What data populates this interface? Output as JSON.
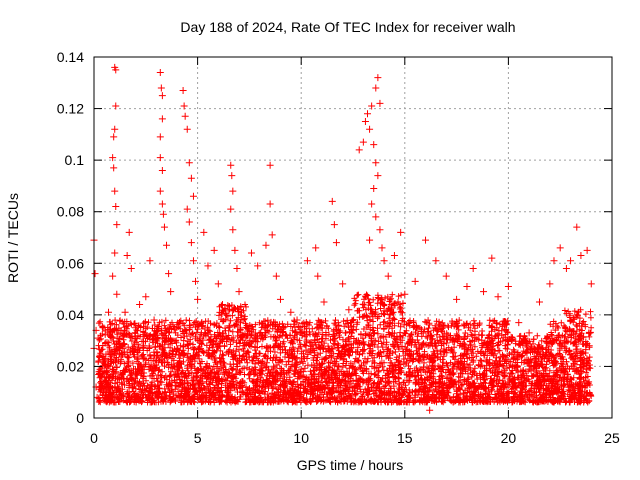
{
  "chart_data": {
    "type": "scatter",
    "title": "Day 188 of 2024, Rate Of TEC Index for receiver walh",
    "xlabel": "GPS time / hours",
    "ylabel": "ROTI / TECUs",
    "xlim": [
      0,
      25
    ],
    "ylim": [
      0,
      0.14
    ],
    "x_ticks": [
      0,
      5,
      10,
      15,
      20,
      25
    ],
    "x_tick_labels": [
      "0",
      "5",
      "10",
      "15",
      "20",
      "25"
    ],
    "y_ticks": [
      0,
      0.02,
      0.04,
      0.06,
      0.08,
      0.1,
      0.12,
      0.14
    ],
    "y_tick_labels": [
      "0",
      "0.02",
      "0.04",
      "0.06",
      "0.08",
      "0.1",
      "0.12",
      "0.14"
    ],
    "grid": true,
    "legend": "none",
    "marker": "plus",
    "color": "#ff0000",
    "series": [
      {
        "values": [
          {
            "x": 0.0,
            "y": 0.027
          },
          {
            "x": 0.0,
            "y": 0.069
          },
          {
            "x": 0.05,
            "y": 0.056
          },
          {
            "x": 0.1,
            "y": 0.034
          },
          {
            "x": 0.1,
            "y": 0.012
          },
          {
            "x": 0.15,
            "y": 0.008
          },
          {
            "x": 0.2,
            "y": 0.031
          },
          {
            "x": 0.5,
            "y": 0.022
          },
          {
            "x": 0.6,
            "y": 0.016
          },
          {
            "x": 0.7,
            "y": 0.041
          },
          {
            "x": 0.8,
            "y": 0.012
          },
          {
            "x": 0.9,
            "y": 0.055
          },
          {
            "x": 1.0,
            "y": 0.136
          },
          {
            "x": 1.05,
            "y": 0.135
          },
          {
            "x": 1.05,
            "y": 0.121
          },
          {
            "x": 1.0,
            "y": 0.112
          },
          {
            "x": 0.95,
            "y": 0.109
          },
          {
            "x": 0.9,
            "y": 0.101
          },
          {
            "x": 0.95,
            "y": 0.097
          },
          {
            "x": 1.0,
            "y": 0.088
          },
          {
            "x": 1.05,
            "y": 0.082
          },
          {
            "x": 1.1,
            "y": 0.075
          },
          {
            "x": 1.0,
            "y": 0.064
          },
          {
            "x": 1.1,
            "y": 0.048
          },
          {
            "x": 1.2,
            "y": 0.034
          },
          {
            "x": 1.3,
            "y": 0.022
          },
          {
            "x": 1.5,
            "y": 0.041
          },
          {
            "x": 1.6,
            "y": 0.063
          },
          {
            "x": 1.7,
            "y": 0.072
          },
          {
            "x": 1.8,
            "y": 0.058
          },
          {
            "x": 2.0,
            "y": 0.035
          },
          {
            "x": 2.2,
            "y": 0.044
          },
          {
            "x": 2.4,
            "y": 0.028
          },
          {
            "x": 2.5,
            "y": 0.047
          },
          {
            "x": 2.7,
            "y": 0.061
          },
          {
            "x": 2.9,
            "y": 0.038
          },
          {
            "x": 3.2,
            "y": 0.134
          },
          {
            "x": 3.25,
            "y": 0.128
          },
          {
            "x": 3.3,
            "y": 0.125
          },
          {
            "x": 3.3,
            "y": 0.116
          },
          {
            "x": 3.2,
            "y": 0.109
          },
          {
            "x": 3.2,
            "y": 0.101
          },
          {
            "x": 3.3,
            "y": 0.096
          },
          {
            "x": 3.2,
            "y": 0.088
          },
          {
            "x": 3.3,
            "y": 0.083
          },
          {
            "x": 3.35,
            "y": 0.079
          },
          {
            "x": 3.4,
            "y": 0.074
          },
          {
            "x": 3.5,
            "y": 0.067
          },
          {
            "x": 3.6,
            "y": 0.056
          },
          {
            "x": 3.7,
            "y": 0.049
          },
          {
            "x": 4.3,
            "y": 0.127
          },
          {
            "x": 4.35,
            "y": 0.121
          },
          {
            "x": 4.4,
            "y": 0.117
          },
          {
            "x": 4.5,
            "y": 0.112
          },
          {
            "x": 4.6,
            "y": 0.099
          },
          {
            "x": 4.7,
            "y": 0.093
          },
          {
            "x": 4.8,
            "y": 0.086
          },
          {
            "x": 4.5,
            "y": 0.081
          },
          {
            "x": 4.6,
            "y": 0.076
          },
          {
            "x": 4.7,
            "y": 0.068
          },
          {
            "x": 4.8,
            "y": 0.061
          },
          {
            "x": 4.9,
            "y": 0.053
          },
          {
            "x": 5.0,
            "y": 0.046
          },
          {
            "x": 5.3,
            "y": 0.072
          },
          {
            "x": 5.5,
            "y": 0.059
          },
          {
            "x": 5.8,
            "y": 0.065
          },
          {
            "x": 6.0,
            "y": 0.052
          },
          {
            "x": 6.2,
            "y": 0.044
          },
          {
            "x": 6.6,
            "y": 0.098
          },
          {
            "x": 6.65,
            "y": 0.094
          },
          {
            "x": 6.7,
            "y": 0.088
          },
          {
            "x": 6.6,
            "y": 0.081
          },
          {
            "x": 6.7,
            "y": 0.073
          },
          {
            "x": 6.8,
            "y": 0.065
          },
          {
            "x": 6.9,
            "y": 0.058
          },
          {
            "x": 7.0,
            "y": 0.049
          },
          {
            "x": 7.1,
            "y": 0.041
          },
          {
            "x": 7.6,
            "y": 0.064
          },
          {
            "x": 7.9,
            "y": 0.059
          },
          {
            "x": 8.3,
            "y": 0.067
          },
          {
            "x": 8.5,
            "y": 0.098
          },
          {
            "x": 8.5,
            "y": 0.083
          },
          {
            "x": 8.6,
            "y": 0.071
          },
          {
            "x": 8.8,
            "y": 0.055
          },
          {
            "x": 9.0,
            "y": 0.046
          },
          {
            "x": 9.5,
            "y": 0.041
          },
          {
            "x": 9.8,
            "y": 0.038
          },
          {
            "x": 10.3,
            "y": 0.061
          },
          {
            "x": 10.7,
            "y": 0.066
          },
          {
            "x": 10.8,
            "y": 0.055
          },
          {
            "x": 11.1,
            "y": 0.045
          },
          {
            "x": 11.5,
            "y": 0.084
          },
          {
            "x": 11.6,
            "y": 0.075
          },
          {
            "x": 11.7,
            "y": 0.068
          },
          {
            "x": 12.0,
            "y": 0.052
          },
          {
            "x": 12.3,
            "y": 0.042
          },
          {
            "x": 12.8,
            "y": 0.104
          },
          {
            "x": 13.0,
            "y": 0.107
          },
          {
            "x": 13.1,
            "y": 0.115
          },
          {
            "x": 13.2,
            "y": 0.118
          },
          {
            "x": 13.3,
            "y": 0.112
          },
          {
            "x": 13.4,
            "y": 0.121
          },
          {
            "x": 13.6,
            "y": 0.128
          },
          {
            "x": 13.7,
            "y": 0.132
          },
          {
            "x": 13.8,
            "y": 0.122
          },
          {
            "x": 13.5,
            "y": 0.106
          },
          {
            "x": 13.6,
            "y": 0.099
          },
          {
            "x": 13.7,
            "y": 0.094
          },
          {
            "x": 13.5,
            "y": 0.089
          },
          {
            "x": 13.4,
            "y": 0.083
          },
          {
            "x": 13.6,
            "y": 0.078
          },
          {
            "x": 13.8,
            "y": 0.073
          },
          {
            "x": 13.3,
            "y": 0.069
          },
          {
            "x": 13.9,
            "y": 0.066
          },
          {
            "x": 14.0,
            "y": 0.061
          },
          {
            "x": 14.2,
            "y": 0.055
          },
          {
            "x": 14.5,
            "y": 0.063
          },
          {
            "x": 14.8,
            "y": 0.072
          },
          {
            "x": 15.0,
            "y": 0.048
          },
          {
            "x": 15.5,
            "y": 0.053
          },
          {
            "x": 16.0,
            "y": 0.069
          },
          {
            "x": 16.5,
            "y": 0.061
          },
          {
            "x": 17.0,
            "y": 0.055
          },
          {
            "x": 17.5,
            "y": 0.046
          },
          {
            "x": 18.0,
            "y": 0.051
          },
          {
            "x": 18.3,
            "y": 0.058
          },
          {
            "x": 18.8,
            "y": 0.049
          },
          {
            "x": 19.2,
            "y": 0.062
          },
          {
            "x": 19.5,
            "y": 0.047
          },
          {
            "x": 20.0,
            "y": 0.051
          },
          {
            "x": 20.5,
            "y": 0.037
          },
          {
            "x": 21.0,
            "y": 0.033
          },
          {
            "x": 21.5,
            "y": 0.045
          },
          {
            "x": 22.0,
            "y": 0.052
          },
          {
            "x": 22.2,
            "y": 0.061
          },
          {
            "x": 22.5,
            "y": 0.066
          },
          {
            "x": 22.8,
            "y": 0.058
          },
          {
            "x": 23.0,
            "y": 0.061
          },
          {
            "x": 23.3,
            "y": 0.074
          },
          {
            "x": 23.5,
            "y": 0.063
          },
          {
            "x": 23.8,
            "y": 0.065
          },
          {
            "x": 24.0,
            "y": 0.052
          },
          {
            "x": 0.3,
            "y": 0.018
          },
          {
            "x": 0.8,
            "y": 0.009
          },
          {
            "x": 1.4,
            "y": 0.027
          },
          {
            "x": 2.1,
            "y": 0.019
          },
          {
            "x": 2.8,
            "y": 0.011
          },
          {
            "x": 3.5,
            "y": 0.024
          },
          {
            "x": 4.1,
            "y": 0.016
          },
          {
            "x": 4.9,
            "y": 0.031
          },
          {
            "x": 5.6,
            "y": 0.013
          },
          {
            "x": 6.3,
            "y": 0.021
          },
          {
            "x": 7.2,
            "y": 0.028
          },
          {
            "x": 7.9,
            "y": 0.015
          },
          {
            "x": 8.7,
            "y": 0.009
          },
          {
            "x": 9.4,
            "y": 0.022
          },
          {
            "x": 10.1,
            "y": 0.018
          },
          {
            "x": 10.9,
            "y": 0.012
          },
          {
            "x": 11.8,
            "y": 0.025
          },
          {
            "x": 12.6,
            "y": 0.019
          },
          {
            "x": 13.3,
            "y": 0.032
          },
          {
            "x": 14.1,
            "y": 0.024
          },
          {
            "x": 14.9,
            "y": 0.011
          },
          {
            "x": 15.7,
            "y": 0.027
          },
          {
            "x": 16.2,
            "y": 0.003
          },
          {
            "x": 16.8,
            "y": 0.016
          },
          {
            "x": 17.6,
            "y": 0.022
          },
          {
            "x": 18.4,
            "y": 0.012
          },
          {
            "x": 19.1,
            "y": 0.026
          },
          {
            "x": 19.8,
            "y": 0.008
          },
          {
            "x": 20.6,
            "y": 0.018
          },
          {
            "x": 21.4,
            "y": 0.013
          },
          {
            "x": 22.3,
            "y": 0.021
          },
          {
            "x": 23.1,
            "y": 0.009
          },
          {
            "x": 23.9,
            "y": 0.028
          }
        ]
      }
    ]
  }
}
